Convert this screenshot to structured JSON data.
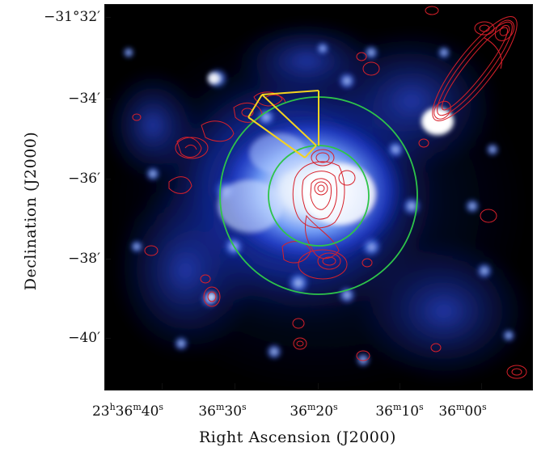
{
  "figure": {
    "ytick_labels": [
      "−31°32′",
      "−34′",
      "−36′",
      "−38′",
      "−40′"
    ],
    "xtick_labels": [
      {
        "base": "23",
        "h": "h",
        "m_val": "36",
        "m": "m",
        "s_val": "40",
        "s": "s"
      },
      {
        "base": "",
        "h": "",
        "m_val": "36",
        "m": "m",
        "s_val": "30",
        "s": "s"
      },
      {
        "base": "",
        "h": "",
        "m_val": "36",
        "m": "m",
        "s_val": "20",
        "s": "s"
      },
      {
        "base": "",
        "h": "",
        "m_val": "36",
        "m": "m",
        "s_val": "10",
        "s": "s"
      },
      {
        "base": "",
        "h": "",
        "m_val": "36",
        "m": "m",
        "s_val": "00",
        "s": "s"
      }
    ],
    "xlabel": "Right Ascension (J2000)",
    "ylabel": "Declination (J2000)"
  },
  "colors": {
    "background": "#000000",
    "emission_core": "#ffffff",
    "emission_mid": "#4a7cff",
    "emission_low": "#0a1a8a",
    "contour": "#d8202a",
    "circle": "#2ec44a",
    "sector": "#f5d320"
  }
}
